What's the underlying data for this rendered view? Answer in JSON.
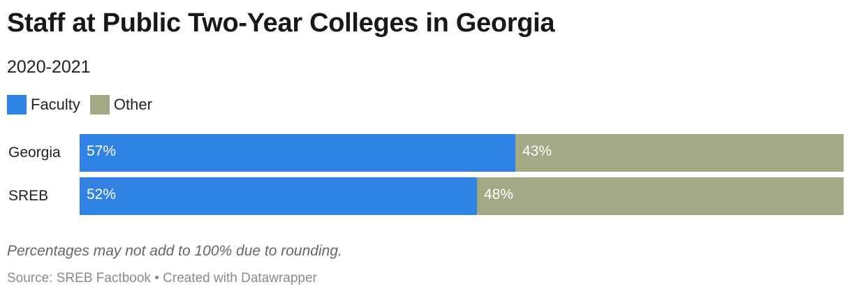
{
  "chart_data": {
    "type": "bar",
    "stacked": true,
    "orientation": "horizontal",
    "title": "Staff at Public Two-Year Colleges in Georgia",
    "subtitle": "2020-2021",
    "categories": [
      "Georgia",
      "SREB"
    ],
    "series": [
      {
        "name": "Faculty",
        "color": "#3083e3",
        "values": [
          57,
          52
        ],
        "labels": [
          "57%",
          "52%"
        ]
      },
      {
        "name": "Other",
        "color": "#a3a885",
        "values": [
          43,
          48
        ],
        "labels": [
          "43%",
          "48%"
        ]
      }
    ],
    "xlim": [
      0,
      100
    ],
    "grid": false,
    "legend": "top-left",
    "note": "Percentages may not add to 100% due to rounding.",
    "source": "Source: SREB Factbook",
    "credit": "Created with Datawrapper"
  }
}
